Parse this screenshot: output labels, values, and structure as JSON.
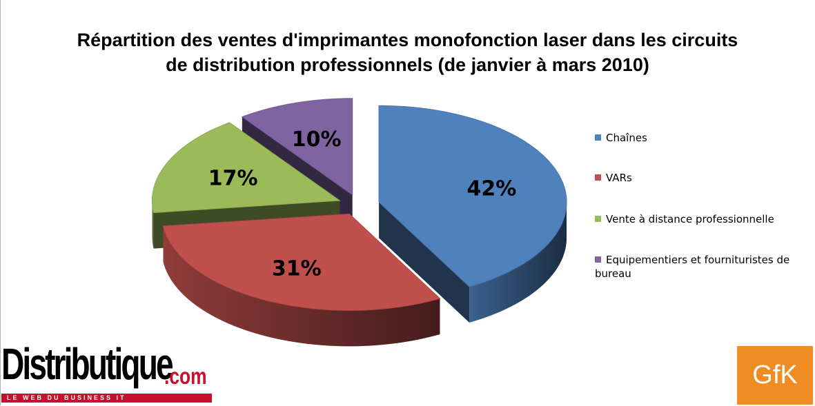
{
  "chart_data": {
    "type": "pie",
    "title": "Répartition des ventes d'imprimantes monofonction laser dans les circuits de distribution professionnels (de janvier à mars 2010)",
    "title_lines": [
      "Répartition des ventes d'imprimantes monofonction laser dans les circuits",
      "de distribution professionnels (de janvier à mars 2010)"
    ],
    "slices": [
      {
        "label": "Chaînes",
        "value": 42,
        "data_label": "42%",
        "color": "#4f81bd"
      },
      {
        "label": "VARs",
        "value": 31,
        "data_label": "31%",
        "color": "#c0504d"
      },
      {
        "label": "Vente à distance professionnelle",
        "value": 17,
        "data_label": "17%",
        "color": "#9bbb59"
      },
      {
        "label": "Equipementiers et fournituristes de bureau",
        "value": 10,
        "data_label": "10%",
        "color": "#8064a2"
      }
    ],
    "legend": {
      "position": "right",
      "items": [
        {
          "lines": [
            "Chaînes"
          ]
        },
        {
          "lines": [
            "VARs"
          ]
        },
        {
          "lines": [
            "Vente à distance professionnelle"
          ]
        },
        {
          "lines": [
            "Equipementiers et fournituristes de",
            "bureau"
          ]
        }
      ]
    },
    "style": "3d-exploded"
  },
  "logos": {
    "left_word": "Distributique",
    "left_suffix": ".com",
    "left_tagline": "LE WEB DU BUSINESS IT",
    "right": "GfK"
  }
}
